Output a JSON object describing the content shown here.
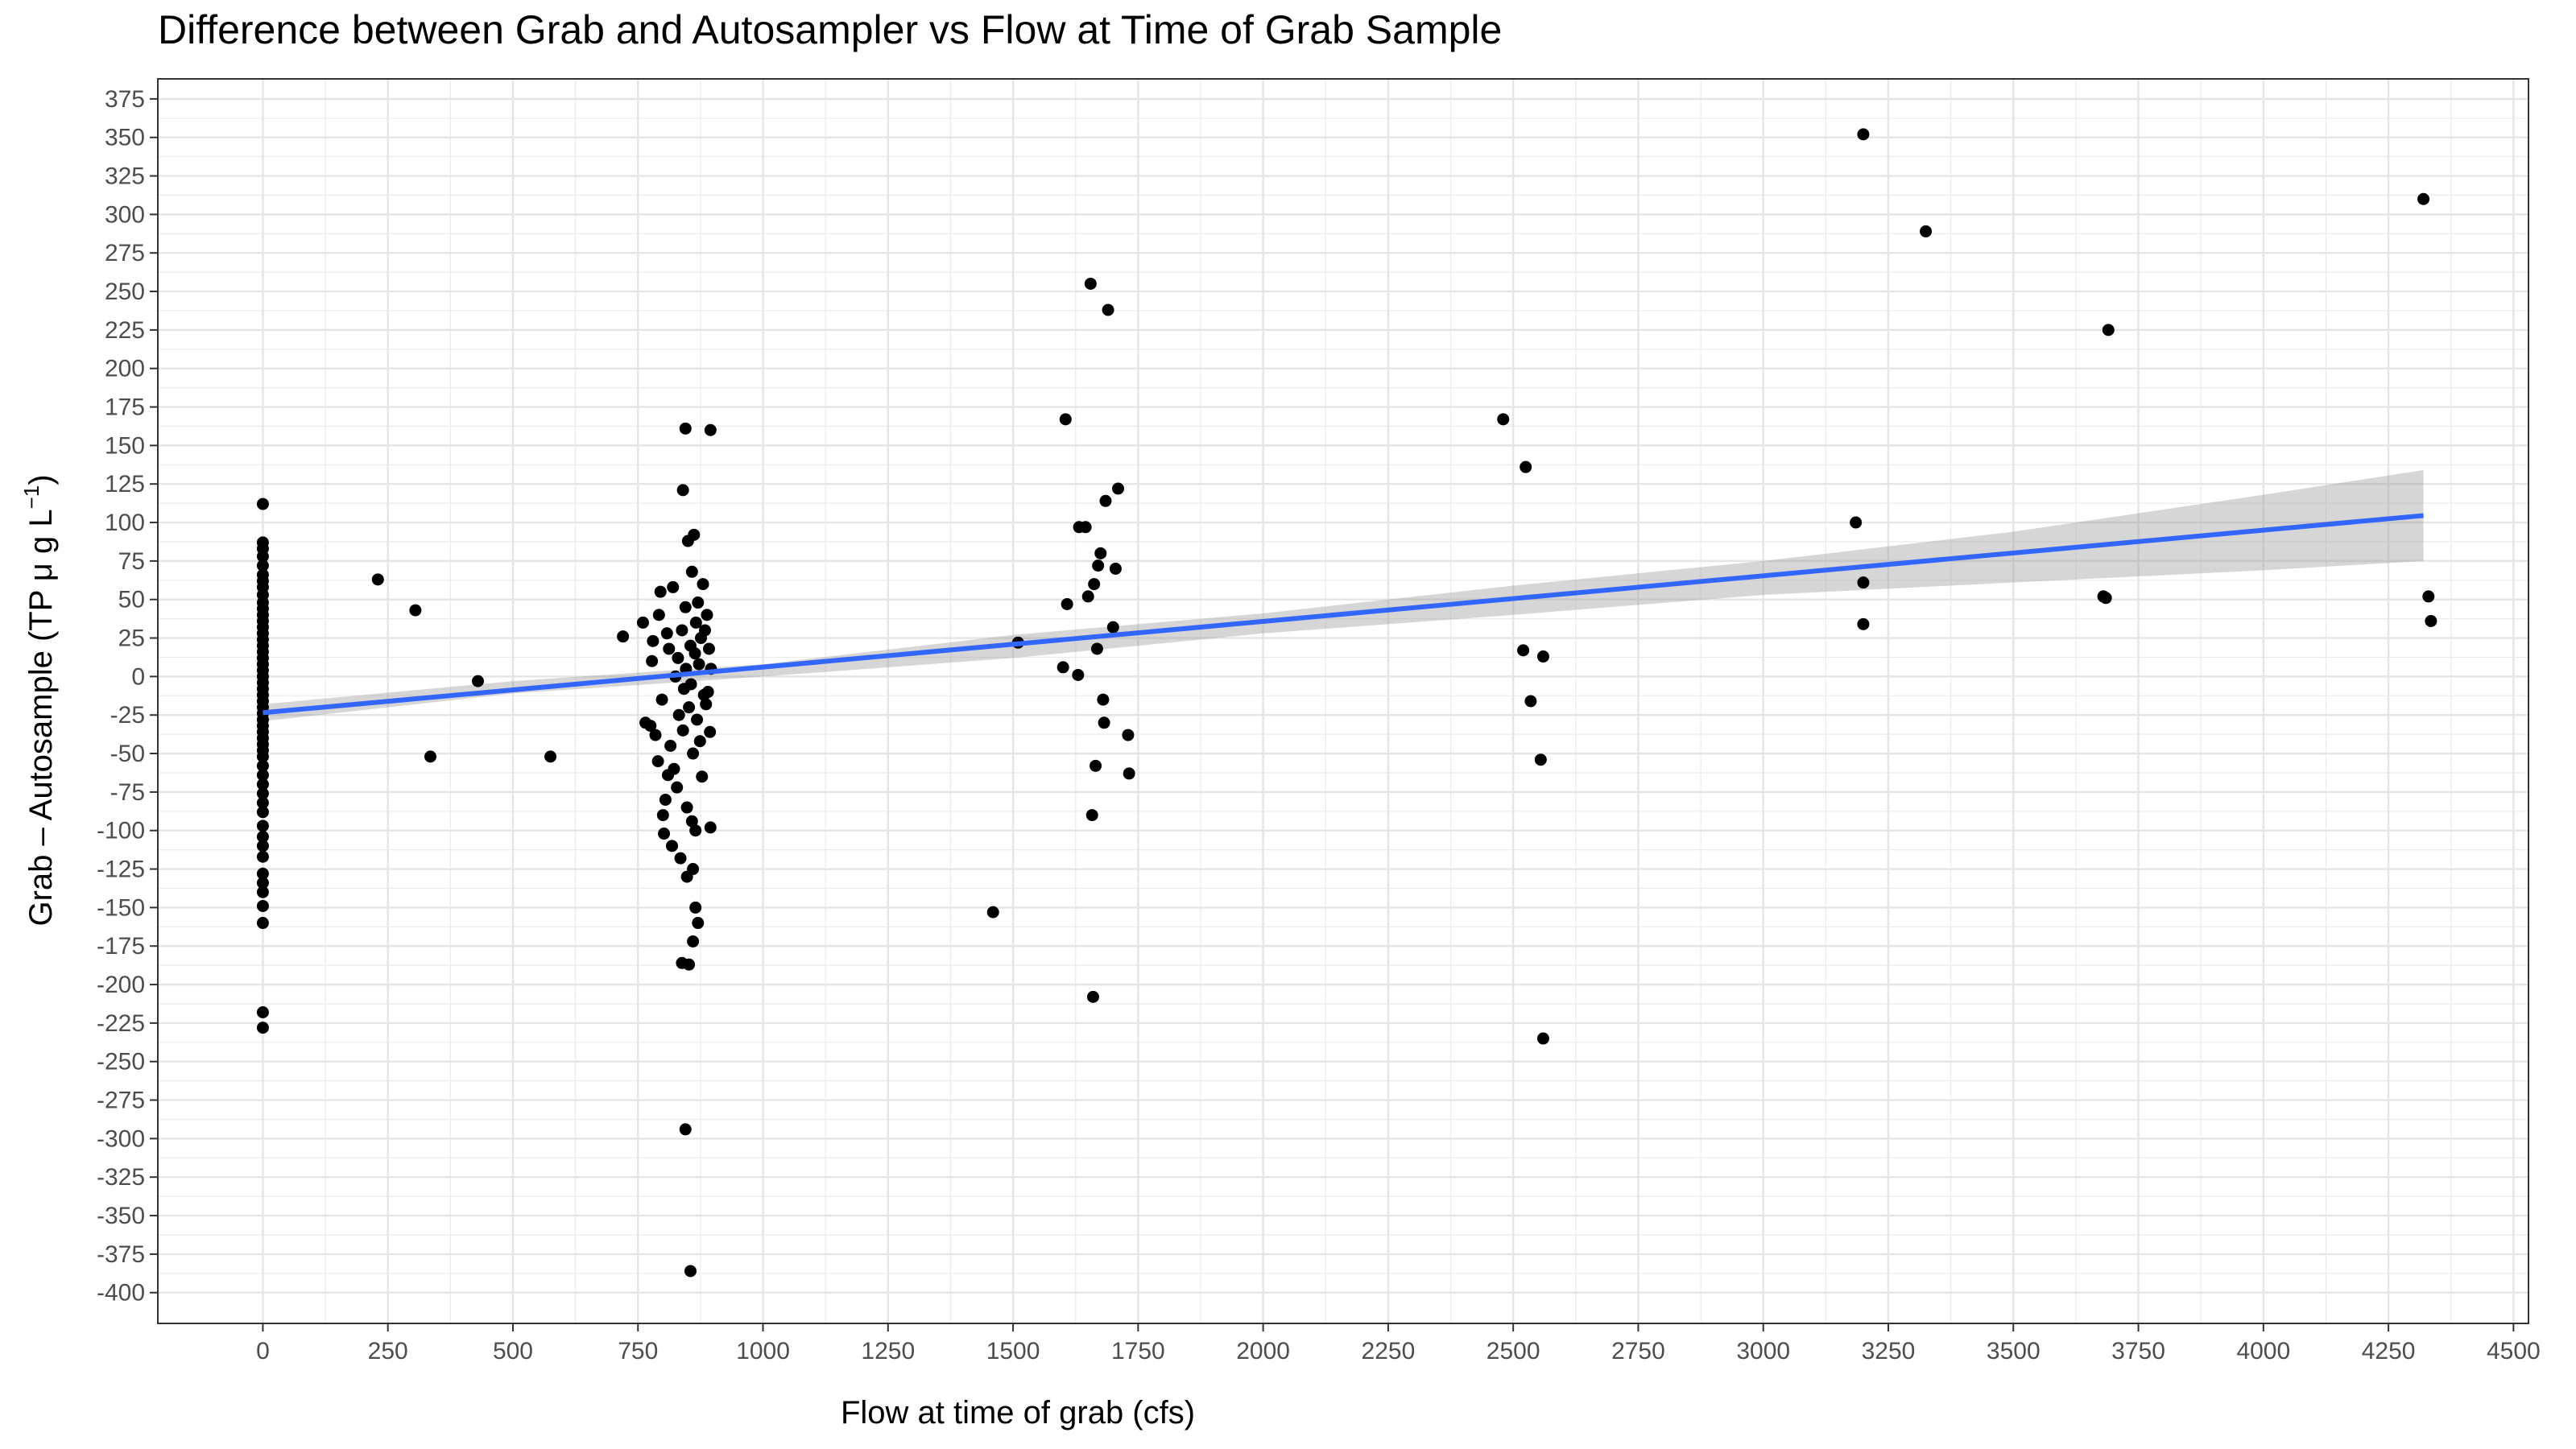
{
  "chart_data": {
    "type": "scatter",
    "title": "Difference between Grab and Autosampler vs Flow at Time of Grab Sample",
    "xlabel": "Flow at time of grab (cfs)",
    "ylabel": "Grab – Autosample (TP μ g L",
    "ylabel_superscript": "−1",
    "ylabel_close": ")",
    "xlim": [
      -210,
      4530
    ],
    "ylim": [
      -420,
      388
    ],
    "x_ticks": [
      0,
      250,
      500,
      750,
      1000,
      1250,
      1500,
      1750,
      2000,
      2250,
      2500,
      2750,
      3000,
      3250,
      3500,
      3750,
      4000,
      4250,
      4500
    ],
    "y_ticks": [
      -400,
      -375,
      -350,
      -325,
      -300,
      -275,
      -250,
      -225,
      -200,
      -175,
      -150,
      -125,
      -100,
      -75,
      -50,
      -25,
      0,
      25,
      50,
      75,
      100,
      125,
      150,
      175,
      200,
      225,
      250,
      275,
      300,
      325,
      350,
      375
    ],
    "grid": true,
    "points_color": "#000000",
    "fit_line_color": "#3366FF",
    "ribbon_color": "#999999",
    "fit_line": {
      "x": [
        0,
        4320
      ],
      "y": [
        -23.5,
        104.5
      ]
    },
    "confidence_band": {
      "x": [
        0,
        500,
        1000,
        1500,
        2000,
        2500,
        3000,
        3500,
        4000,
        4320
      ],
      "lower": [
        -29,
        -11,
        0,
        12,
        28,
        40,
        53,
        61,
        69,
        75
      ],
      "upper": [
        -18,
        -3,
        8,
        27,
        41,
        59,
        75,
        94,
        118,
        134
      ]
    },
    "series": [
      {
        "points": [
          [
            0,
            112
          ],
          [
            0,
            87
          ],
          [
            0,
            83
          ],
          [
            0,
            78
          ],
          [
            0,
            72
          ],
          [
            0,
            66
          ],
          [
            0,
            62
          ],
          [
            0,
            58
          ],
          [
            0,
            53
          ],
          [
            0,
            48
          ],
          [
            0,
            44
          ],
          [
            0,
            40
          ],
          [
            0,
            36
          ],
          [
            0,
            32
          ],
          [
            0,
            28
          ],
          [
            0,
            24
          ],
          [
            0,
            20
          ],
          [
            0,
            16
          ],
          [
            0,
            12
          ],
          [
            0,
            8
          ],
          [
            0,
            4
          ],
          [
            0,
            0
          ],
          [
            0,
            -4
          ],
          [
            0,
            -8
          ],
          [
            0,
            -12
          ],
          [
            0,
            -16
          ],
          [
            0,
            -20
          ],
          [
            0,
            -24
          ],
          [
            0,
            -28
          ],
          [
            0,
            -32
          ],
          [
            0,
            -36
          ],
          [
            0,
            -40
          ],
          [
            0,
            -44
          ],
          [
            0,
            -48
          ],
          [
            0,
            -52
          ],
          [
            0,
            -58
          ],
          [
            0,
            -64
          ],
          [
            0,
            -70
          ],
          [
            0,
            -76
          ],
          [
            0,
            -82
          ],
          [
            0,
            -88
          ],
          [
            0,
            -97
          ],
          [
            0,
            -104
          ],
          [
            0,
            -110
          ],
          [
            0,
            -117
          ],
          [
            0,
            -128
          ],
          [
            0,
            -134
          ],
          [
            0,
            -140
          ],
          [
            0,
            -149
          ],
          [
            0,
            -160
          ],
          [
            0,
            -218
          ],
          [
            0,
            -228
          ],
          [
            230,
            63
          ],
          [
            305,
            43
          ],
          [
            335,
            -52
          ],
          [
            430,
            -3
          ],
          [
            575,
            -52
          ],
          [
            720,
            26
          ],
          [
            760,
            35
          ],
          [
            765,
            -30
          ],
          [
            775,
            -32
          ],
          [
            778,
            10
          ],
          [
            780,
            23
          ],
          [
            785,
            -38
          ],
          [
            790,
            -55
          ],
          [
            792,
            40
          ],
          [
            795,
            55
          ],
          [
            798,
            -15
          ],
          [
            800,
            -90
          ],
          [
            802,
            -102
          ],
          [
            805,
            -80
          ],
          [
            808,
            28
          ],
          [
            810,
            -64
          ],
          [
            812,
            18
          ],
          [
            815,
            -45
          ],
          [
            818,
            -110
          ],
          [
            820,
            58
          ],
          [
            822,
            -60
          ],
          [
            825,
            0
          ],
          [
            828,
            -72
          ],
          [
            830,
            12
          ],
          [
            832,
            -25
          ],
          [
            835,
            -118
          ],
          [
            838,
            30
          ],
          [
            840,
            -35
          ],
          [
            842,
            -8
          ],
          [
            845,
            45
          ],
          [
            846,
            5
          ],
          [
            848,
            -85
          ],
          [
            850,
            88
          ],
          [
            852,
            -20
          ],
          [
            855,
            20
          ],
          [
            856,
            -5
          ],
          [
            858,
            68
          ],
          [
            860,
            -50
          ],
          [
            862,
            92
          ],
          [
            864,
            15
          ],
          [
            865,
            -100
          ],
          [
            866,
            35
          ],
          [
            868,
            -28
          ],
          [
            870,
            48
          ],
          [
            872,
            8
          ],
          [
            874,
            -42
          ],
          [
            876,
            25
          ],
          [
            878,
            -65
          ],
          [
            880,
            60
          ],
          [
            882,
            -12
          ],
          [
            884,
            30
          ],
          [
            886,
            -18
          ],
          [
            888,
            40
          ],
          [
            890,
            -10
          ],
          [
            892,
            18
          ],
          [
            894,
            -36
          ],
          [
            896,
            5
          ],
          [
            840,
            121
          ],
          [
            845,
            161
          ],
          [
            895,
            160
          ],
          [
            895,
            -98
          ],
          [
            858,
            -94
          ],
          [
            848,
            -130
          ],
          [
            860,
            -125
          ],
          [
            865,
            -150
          ],
          [
            870,
            -160
          ],
          [
            860,
            -172
          ],
          [
            838,
            -186
          ],
          [
            852,
            -187
          ],
          [
            845,
            -294
          ],
          [
            855,
            -386
          ],
          [
            1460,
            -153
          ],
          [
            1510,
            22
          ],
          [
            1600,
            6
          ],
          [
            1605,
            167
          ],
          [
            1608,
            47
          ],
          [
            1630,
            1
          ],
          [
            1632,
            97
          ],
          [
            1645,
            97
          ],
          [
            1650,
            52
          ],
          [
            1655,
            255
          ],
          [
            1658,
            -90
          ],
          [
            1660,
            -208
          ],
          [
            1662,
            60
          ],
          [
            1665,
            -58
          ],
          [
            1668,
            18
          ],
          [
            1670,
            72
          ],
          [
            1675,
            80
          ],
          [
            1680,
            -15
          ],
          [
            1682,
            -30
          ],
          [
            1685,
            114
          ],
          [
            1690,
            238
          ],
          [
            1700,
            32
          ],
          [
            1705,
            70
          ],
          [
            1710,
            122
          ],
          [
            1730,
            -38
          ],
          [
            1732,
            -63
          ],
          [
            2480,
            167
          ],
          [
            2520,
            17
          ],
          [
            2525,
            136
          ],
          [
            2535,
            -16
          ],
          [
            2555,
            -54
          ],
          [
            2560,
            13
          ],
          [
            2560,
            -235
          ],
          [
            3185,
            100
          ],
          [
            3200,
            352
          ],
          [
            3200,
            61
          ],
          [
            3200,
            34
          ],
          [
            3325,
            289
          ],
          [
            3680,
            52
          ],
          [
            3685,
            51
          ],
          [
            3690,
            225
          ],
          [
            4320,
            310
          ],
          [
            4330,
            52
          ],
          [
            4335,
            36
          ]
        ]
      }
    ]
  }
}
